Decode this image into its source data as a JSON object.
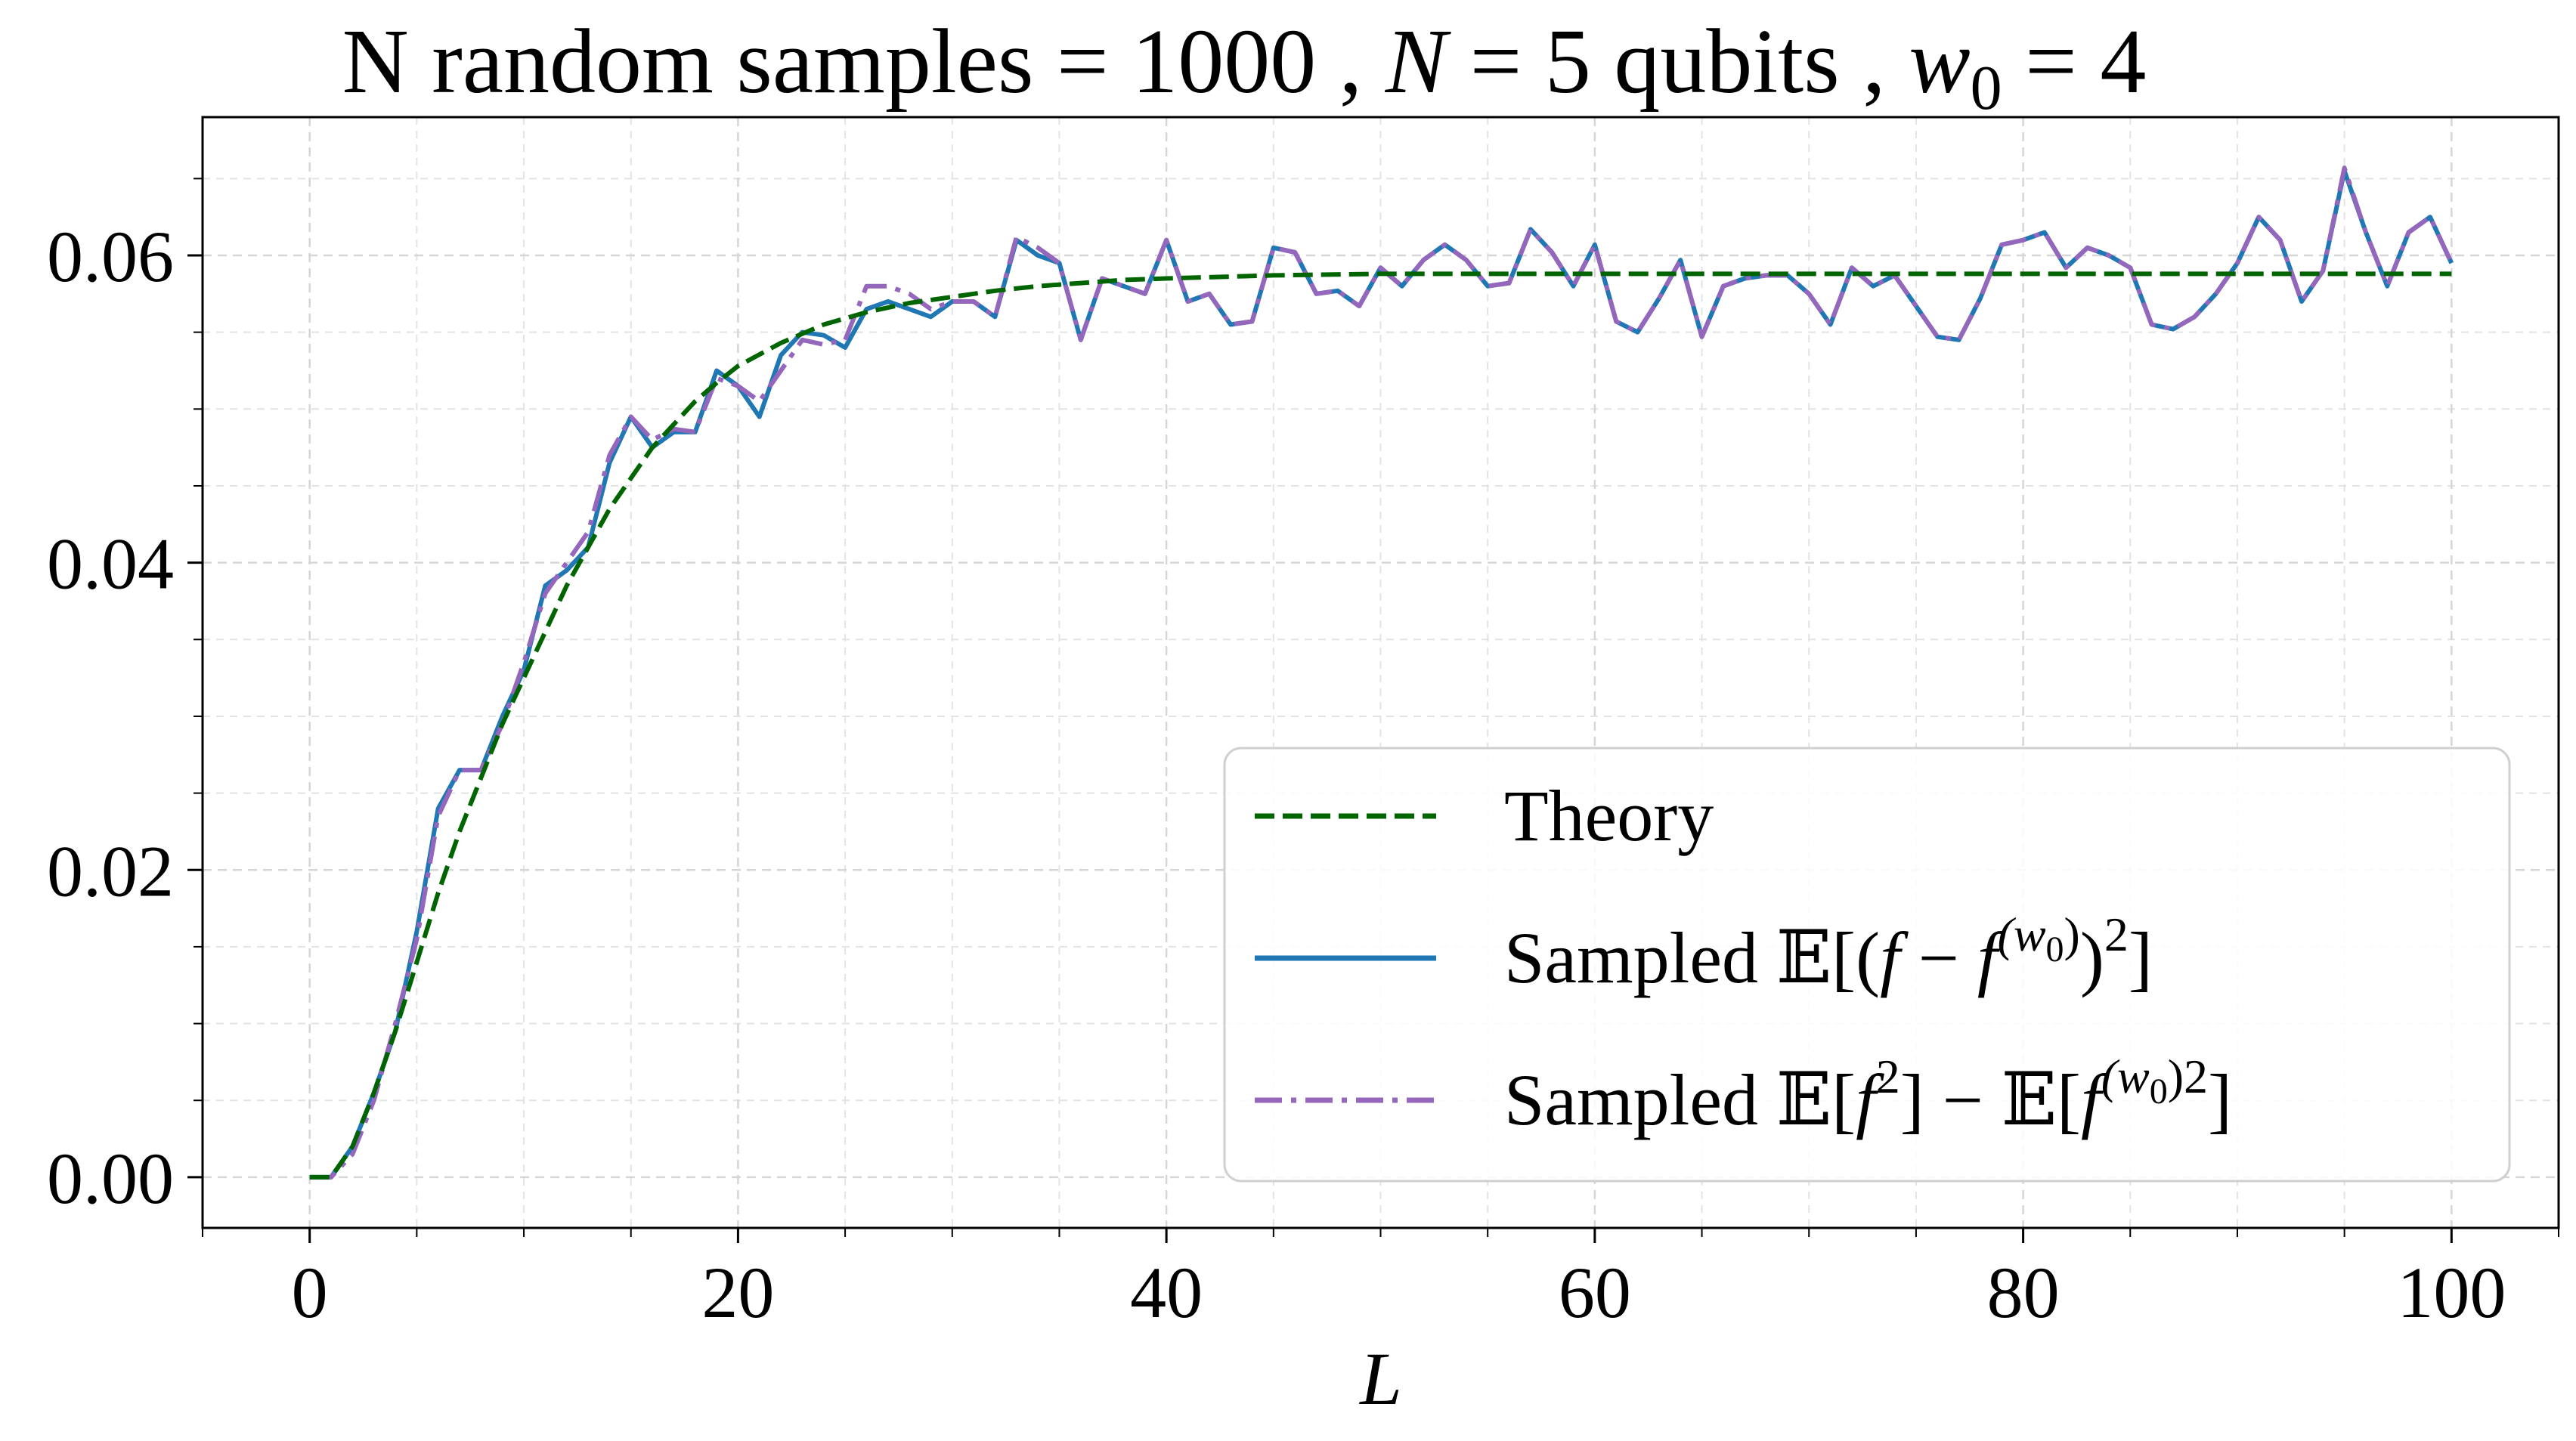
{
  "chart_data": {
    "type": "line",
    "title": "N random samples = 1000 , N = 5 qubits , w0 = 4",
    "title_parts": {
      "prefix": "N random samples = 1000 , ",
      "n_symbol": "N",
      "n_value": " = 5 qubits , ",
      "w_symbol": "w",
      "w_subscript": "0",
      "w_value": " = 4"
    },
    "xlabel": "L",
    "ylabel": "",
    "xlim": [
      -5,
      105
    ],
    "ylim": [
      -0.0033,
      0.069
    ],
    "xticks": [
      0,
      20,
      40,
      60,
      80,
      100
    ],
    "xtick_labels": [
      "0",
      "20",
      "40",
      "60",
      "80",
      "100"
    ],
    "yticks": [
      0.0,
      0.02,
      0.04,
      0.06
    ],
    "ytick_labels": [
      "0.00",
      "0.02",
      "0.04",
      "0.06"
    ],
    "grid": true,
    "legend_position": "lower-right",
    "series": [
      {
        "name": "Theory",
        "legend_label": "Theory",
        "color": "#006400",
        "style": "dashed",
        "x": [
          0,
          1,
          2,
          3,
          4,
          5,
          6,
          7,
          8,
          9,
          10,
          11,
          12,
          13,
          14,
          15,
          16,
          17,
          18,
          19,
          20,
          22,
          24,
          26,
          28,
          30,
          32,
          34,
          36,
          38,
          40,
          45,
          50,
          55,
          60,
          65,
          70,
          75,
          80,
          85,
          90,
          95,
          100
        ],
        "values": [
          0.0,
          0.0,
          0.002,
          0.0055,
          0.0095,
          0.014,
          0.0185,
          0.0225,
          0.026,
          0.0295,
          0.0325,
          0.0355,
          0.0385,
          0.041,
          0.0435,
          0.0455,
          0.0475,
          0.049,
          0.0505,
          0.0517,
          0.0528,
          0.0543,
          0.0555,
          0.0563,
          0.0569,
          0.0573,
          0.0577,
          0.058,
          0.0582,
          0.0584,
          0.0585,
          0.0587,
          0.0588,
          0.0588,
          0.0588,
          0.0588,
          0.0588,
          0.0588,
          0.0588,
          0.0588,
          0.0588,
          0.0588,
          0.0588
        ]
      },
      {
        "name": "Sampled E[(f - f^(w0))^2]",
        "legend_label_parts": [
          "Sampled ",
          "𝔼",
          "[(",
          "f",
          " − ",
          "f",
          "(w",
          "0",
          ")",
          ")",
          "2",
          "]"
        ],
        "color": "#1f77b4",
        "style": "solid",
        "x_start": 0,
        "x_step": 1,
        "values": [
          0.0,
          0.0,
          0.002,
          0.0055,
          0.0095,
          0.016,
          0.024,
          0.0265,
          0.0265,
          0.03,
          0.033,
          0.0385,
          0.0395,
          0.041,
          0.0465,
          0.0495,
          0.0475,
          0.0485,
          0.0485,
          0.0525,
          0.0515,
          0.0495,
          0.0535,
          0.055,
          0.0548,
          0.054,
          0.0565,
          0.057,
          0.0565,
          0.056,
          0.057,
          0.057,
          0.056,
          0.061,
          0.06,
          0.0595,
          0.0545,
          0.0585,
          0.058,
          0.0575,
          0.061,
          0.057,
          0.0575,
          0.0555,
          0.0557,
          0.0605,
          0.0602,
          0.0575,
          0.0577,
          0.0567,
          0.0592,
          0.058,
          0.0597,
          0.0607,
          0.0597,
          0.058,
          0.0582,
          0.0617,
          0.0602,
          0.058,
          0.0607,
          0.0557,
          0.055,
          0.0572,
          0.0597,
          0.0547,
          0.058,
          0.0585,
          0.0587,
          0.0587,
          0.0575,
          0.0555,
          0.0592,
          0.058,
          0.0587,
          0.0567,
          0.0547,
          0.0545,
          0.0572,
          0.0607,
          0.061,
          0.0615,
          0.0592,
          0.0605,
          0.06,
          0.0592,
          0.0555,
          0.0552,
          0.056,
          0.0575,
          0.0595,
          0.0625,
          0.061,
          0.057,
          0.059,
          0.0655,
          0.0615,
          0.058,
          0.0615,
          0.0625,
          0.0595
        ]
      },
      {
        "name": "Sampled E[f^2] - E[f^(w0)2]",
        "legend_label_parts": [
          "Sampled ",
          "𝔼",
          "[",
          "f",
          "2",
          "] − ",
          "𝔼",
          "[",
          "f",
          "(w",
          "0",
          ")2",
          "]"
        ],
        "color": "#9467bd",
        "style": "dashdot",
        "x_start": 0,
        "x_step": 1,
        "values": [
          0.0,
          0.0,
          0.0015,
          0.005,
          0.01,
          0.0155,
          0.0235,
          0.0265,
          0.0265,
          0.0295,
          0.0335,
          0.038,
          0.04,
          0.042,
          0.047,
          0.0495,
          0.048,
          0.0487,
          0.0485,
          0.052,
          0.0515,
          0.0505,
          0.0525,
          0.0545,
          0.0542,
          0.0545,
          0.058,
          0.058,
          0.0575,
          0.0565,
          0.057,
          0.057,
          0.056,
          0.0612,
          0.0605,
          0.0595,
          0.0545,
          0.0585,
          0.058,
          0.0575,
          0.061,
          0.057,
          0.0575,
          0.0555,
          0.0557,
          0.0605,
          0.0602,
          0.0575,
          0.0577,
          0.0567,
          0.0592,
          0.058,
          0.0597,
          0.0607,
          0.0597,
          0.058,
          0.0582,
          0.0617,
          0.0602,
          0.058,
          0.0607,
          0.0557,
          0.055,
          0.0572,
          0.0597,
          0.0547,
          0.058,
          0.0585,
          0.0587,
          0.0587,
          0.0575,
          0.0555,
          0.0592,
          0.058,
          0.0587,
          0.0567,
          0.0547,
          0.0545,
          0.0572,
          0.0607,
          0.061,
          0.0615,
          0.0592,
          0.0605,
          0.06,
          0.0592,
          0.0555,
          0.0552,
          0.056,
          0.0575,
          0.0595,
          0.0625,
          0.061,
          0.057,
          0.059,
          0.0657,
          0.0615,
          0.058,
          0.0615,
          0.0625,
          0.0595
        ]
      }
    ]
  }
}
